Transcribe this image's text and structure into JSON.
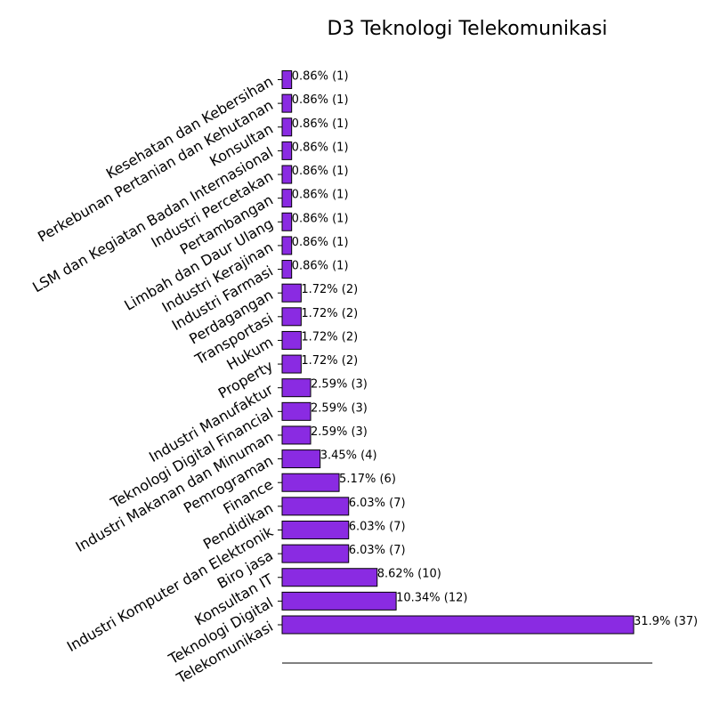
{
  "chart_data": {
    "type": "bar",
    "orientation": "horizontal",
    "title": "D3 Teknologi Telekomunikasi",
    "xlabel": "",
    "ylabel": "",
    "grid": false,
    "bar_color": "#8a2be2",
    "bar_edge_color": "#000000",
    "categories": [
      "Kesehatan dan Kebersihan",
      "Perkebunan Pertanian dan Kehutanan",
      "Konsultan",
      "LSM dan Kegiatan Badan Internasional",
      "Industri Percetakan",
      "Pertambangan",
      "Limbah dan Daur Ulang",
      "Industri Kerajinan",
      "Industri Farmasi",
      "Perdagangan",
      "Transportasi",
      "Hukum",
      "Property",
      "Industri Manufaktur",
      "Teknologi Digital Financial",
      "Industri Makanan dan Minuman",
      "Pemrograman",
      "Finance",
      "Pendidikan",
      "Industri Komputer dan Elektronik",
      "Biro jasa",
      "Konsultan IT",
      "Teknologi Digital",
      "Telekomunikasi"
    ],
    "values": [
      1,
      1,
      1,
      1,
      1,
      1,
      1,
      1,
      1,
      2,
      2,
      2,
      2,
      3,
      3,
      3,
      4,
      6,
      7,
      7,
      7,
      10,
      12,
      37
    ],
    "data_labels": [
      "0.86% (1)",
      "0.86% (1)",
      "0.86% (1)",
      "0.86% (1)",
      "0.86% (1)",
      "0.86% (1)",
      "0.86% (1)",
      "0.86% (1)",
      "0.86% (1)",
      "1.72% (2)",
      "1.72% (2)",
      "1.72% (2)",
      "1.72% (2)",
      "2.59% (3)",
      "2.59% (3)",
      "2.59% (3)",
      "3.45% (4)",
      "5.17% (6)",
      "6.03% (7)",
      "6.03% (7)",
      "6.03% (7)",
      "8.62% (10)",
      "10.34% (12)",
      "31.9% (37)"
    ],
    "xlim": [
      0,
      39
    ]
  }
}
